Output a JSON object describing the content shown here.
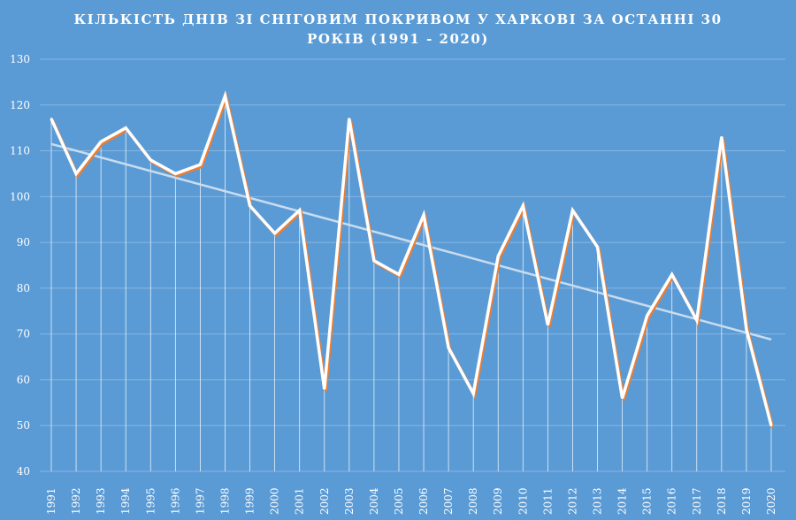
{
  "chart_data": {
    "type": "line",
    "title_line1": "КІЛЬКІСТЬ ДНІВ ЗІ СНІГОВИМ ПОКРИВОМ У ХАРКОВІ ЗА ОСТАННІ 30",
    "title_line2": "РОКІВ (1991 - 2020)",
    "categories": [
      "1991",
      "1992",
      "1993",
      "1994",
      "1995",
      "1996",
      "1997",
      "1998",
      "1999",
      "2000",
      "2001",
      "2002",
      "2003",
      "2004",
      "2005",
      "2006",
      "2007",
      "2008",
      "2009",
      "2010",
      "2011",
      "2012",
      "2013",
      "2014",
      "2015",
      "2016",
      "2017",
      "2018",
      "2019",
      "2020"
    ],
    "values": [
      117,
      105,
      112,
      115,
      108,
      105,
      107,
      122,
      98,
      92,
      97,
      58,
      117,
      86,
      83,
      96,
      67,
      57,
      87,
      98,
      72,
      97,
      89,
      56,
      74,
      83,
      73,
      113,
      71,
      50
    ],
    "trendline": [
      111.5,
      68.8
    ],
    "ylim": [
      40,
      130
    ],
    "yticks": [
      40,
      50,
      60,
      70,
      80,
      90,
      100,
      110,
      120,
      130
    ],
    "grid": true,
    "drop_lines": true,
    "colors": {
      "background": "#5b9bd5",
      "line": "#ffffff",
      "line_shadow": "#ed7d31",
      "trend": "#c9dcef",
      "grid": "#86b6e2",
      "text": "#ffffff"
    }
  }
}
